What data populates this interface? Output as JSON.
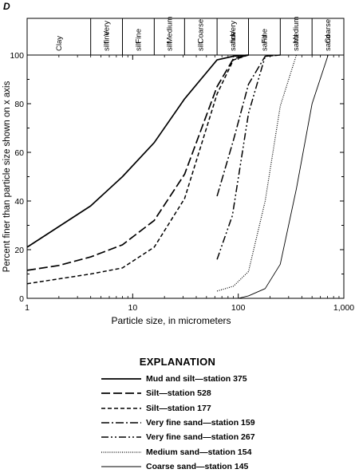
{
  "panel_letter": "D",
  "chart_data": {
    "type": "line",
    "x_scale": "log",
    "xlim": [
      1,
      1000
    ],
    "ylim": [
      0,
      100
    ],
    "xlabel": "Particle size, in micrometers",
    "ylabel": "Percent finer than particle size shown on x axis",
    "xticks": [
      "1",
      "10",
      "100",
      "1,000"
    ],
    "yticks": [
      "0",
      "20",
      "40",
      "60",
      "80",
      "100"
    ],
    "size_classes": [
      {
        "lines": [
          "Clay"
        ]
      },
      {
        "lines": [
          "Very",
          "fine",
          "silt"
        ]
      },
      {
        "lines": [
          "Fine",
          "silt"
        ]
      },
      {
        "lines": [
          "Medium",
          "silt"
        ]
      },
      {
        "lines": [
          "Coarse",
          "silt"
        ]
      },
      {
        "lines": [
          "Very",
          "fine",
          "sand"
        ]
      },
      {
        "lines": [
          "Fine",
          "sand"
        ]
      },
      {
        "lines": [
          "Medium",
          "sand"
        ]
      },
      {
        "lines": [
          "Coarse",
          "sand"
        ]
      }
    ],
    "size_class_boundaries": [
      4,
      8,
      16,
      31,
      63,
      125,
      250,
      500
    ],
    "legend_title": "EXPLANATION",
    "series": [
      {
        "name": "Mud and silt—station 375",
        "style": "solid",
        "x": [
          1,
          4,
          8,
          16,
          31,
          63,
          90,
          125
        ],
        "y": [
          21,
          38,
          50,
          64,
          82,
          98,
          99.5,
          100
        ]
      },
      {
        "name": "Silt—station 528",
        "style": "longdash",
        "x": [
          1,
          2,
          4,
          8,
          16,
          31,
          63,
          90,
          125
        ],
        "y": [
          11.5,
          13.5,
          17,
          22,
          32,
          51,
          87,
          98.5,
          100
        ]
      },
      {
        "name": "Silt—station 177",
        "style": "shortdash",
        "x": [
          1,
          2,
          4,
          8,
          16,
          31,
          63,
          90,
          125
        ],
        "y": [
          6,
          8,
          10,
          12.5,
          21,
          41,
          84,
          98,
          100
        ]
      },
      {
        "name": "Very fine sand—station 159",
        "style": "dashdot",
        "x": [
          63,
          90,
          125,
          180,
          250
        ],
        "y": [
          42,
          65,
          88,
          99.5,
          100
        ]
      },
      {
        "name": "Very fine sand—station 267",
        "style": "dashdotdot",
        "x": [
          63,
          88,
          125,
          180,
          250
        ],
        "y": [
          16,
          34,
          76,
          99.5,
          100
        ]
      },
      {
        "name": "Medium sand—station 154",
        "style": "dotted",
        "x": [
          63,
          90,
          125,
          180,
          250,
          355
        ],
        "y": [
          3,
          5,
          11,
          40,
          79,
          100
        ]
      },
      {
        "name": "Coarse sand—station 145",
        "style": "thin",
        "x": [
          100,
          125,
          180,
          250,
          355,
          500,
          710
        ],
        "y": [
          0,
          1,
          4,
          14,
          45,
          80,
          100
        ]
      }
    ]
  }
}
